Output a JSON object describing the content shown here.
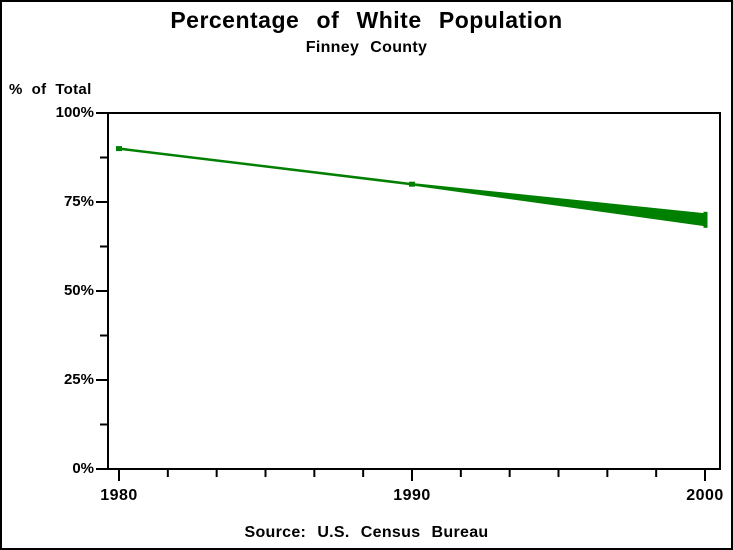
{
  "page": {
    "background": "#ffffff",
    "frame_color": "#000000"
  },
  "chart_data": {
    "type": "line",
    "title": "Percentage of White Population",
    "subtitle": "Finney County",
    "footnote": "Source: U.S. Census Bureau",
    "ylabel": "% of Total",
    "xlabel": "",
    "x": [
      1980,
      1990,
      2000
    ],
    "series": [
      {
        "name": "white-population-share",
        "values": [
          90,
          80,
          70
        ]
      }
    ],
    "x_ticks": [
      1980,
      1990,
      2000
    ],
    "x_tick_labels": [
      "1980",
      "1990",
      "2000"
    ],
    "y_ticks": [
      0,
      25,
      50,
      75,
      100
    ],
    "y_tick_labels": [
      "0%",
      "25%",
      "50%",
      "75%",
      "100%"
    ],
    "xlim": [
      1980,
      2000
    ],
    "ylim": [
      0,
      100
    ],
    "minor_ticks_between_x": 5,
    "minor_ticks_between_y": 1,
    "grid": false,
    "legend_position": "none",
    "line_color": "#008000",
    "axis_color": "#000000",
    "line_style": "tapered - thin at 1980, thickening into a wedge toward 2000",
    "markers": "small filled squares at 1980 and 1990, vertical end-cap at 2000"
  }
}
